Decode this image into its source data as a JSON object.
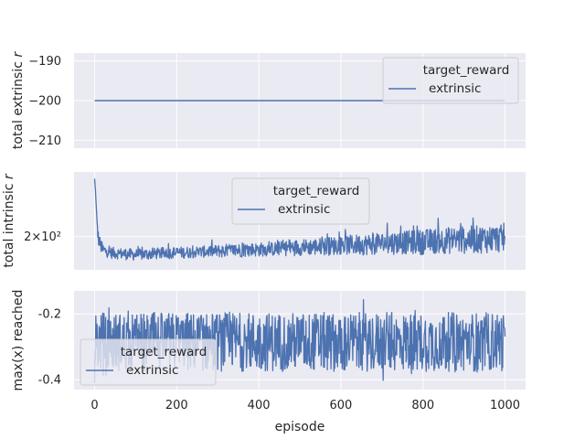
{
  "chart_data": [
    {
      "type": "line",
      "ylabel": "total extrinsic r",
      "ylabel_italic_r": true,
      "x_ticks": [
        0,
        200,
        400,
        600,
        800,
        1000
      ],
      "y_ticks": [
        -190,
        -200,
        -210
      ],
      "y_tick_labels": [
        "−190",
        "−200",
        "−210"
      ],
      "xlim": [
        -50,
        1050
      ],
      "ylim": [
        -212,
        -188
      ],
      "legend": {
        "title": "target_reward",
        "entries": [
          "extrinsic"
        ],
        "placement": "top-right"
      },
      "series": [
        {
          "name": "extrinsic",
          "color": "#4c72b0",
          "x": [
            0,
            1000
          ],
          "values": [
            -200,
            -200
          ]
        }
      ]
    },
    {
      "type": "line",
      "ylabel": "total intrinsic r",
      "ylabel_italic_r": true,
      "y_scale": "log",
      "x_ticks": [
        0,
        200,
        400,
        600,
        800,
        1000
      ],
      "y_ticks": [
        200
      ],
      "y_tick_labels": [
        "2×10²"
      ],
      "xlim": [
        -50,
        1050
      ],
      "ylim": [
        150,
        350
      ],
      "legend": {
        "title": "target_reward",
        "entries": [
          "extrinsic"
        ],
        "placement": "upper-center"
      },
      "series": [
        {
          "name": "extrinsic",
          "color": "#4c72b0",
          "x": [
            0,
            2,
            4,
            6,
            8,
            10,
            15,
            20,
            30,
            40,
            60,
            80,
            100,
            130,
            160,
            200,
            240,
            280,
            320,
            360,
            400,
            440,
            480,
            520,
            560,
            600,
            640,
            680,
            720,
            760,
            800,
            840,
            880,
            920,
            960,
            1000
          ],
          "values": [
            330,
            300,
            260,
            230,
            205,
            195,
            185,
            178,
            176,
            174,
            173,
            172,
            171,
            172,
            173,
            174,
            175,
            176,
            177,
            178,
            179,
            180,
            182,
            183,
            184,
            186,
            187,
            188,
            190,
            191,
            192,
            194,
            195,
            196,
            197,
            198
          ],
          "noise_fraction": [
            0,
            0,
            0,
            0,
            0.05,
            0.06,
            0.06,
            0.06,
            0.05,
            0.05,
            0.05,
            0.05,
            0.05,
            0.05,
            0.05,
            0.05,
            0.05,
            0.05,
            0.06,
            0.06,
            0.06,
            0.06,
            0.07,
            0.07,
            0.08,
            0.08,
            0.09,
            0.09,
            0.1,
            0.1,
            0.11,
            0.11,
            0.12,
            0.12,
            0.12,
            0.12
          ]
        }
      ]
    },
    {
      "type": "line",
      "ylabel": "max(x) reached",
      "xlabel": "episode",
      "x_ticks": [
        0,
        200,
        400,
        600,
        800,
        1000
      ],
      "y_ticks": [
        -0.2,
        -0.4
      ],
      "y_tick_labels": [
        "-0.2",
        "-0.4"
      ],
      "xlim": [
        -50,
        1050
      ],
      "ylim": [
        -0.43,
        -0.13
      ],
      "legend": {
        "title": "target_reward",
        "entries": [
          "extrinsic"
        ],
        "placement": "lower-left"
      },
      "series": [
        {
          "name": "extrinsic",
          "color": "#4c72b0",
          "center": -0.285,
          "spread": 0.09,
          "min": -0.415,
          "max": -0.145,
          "first_value": -0.41
        }
      ]
    }
  ]
}
